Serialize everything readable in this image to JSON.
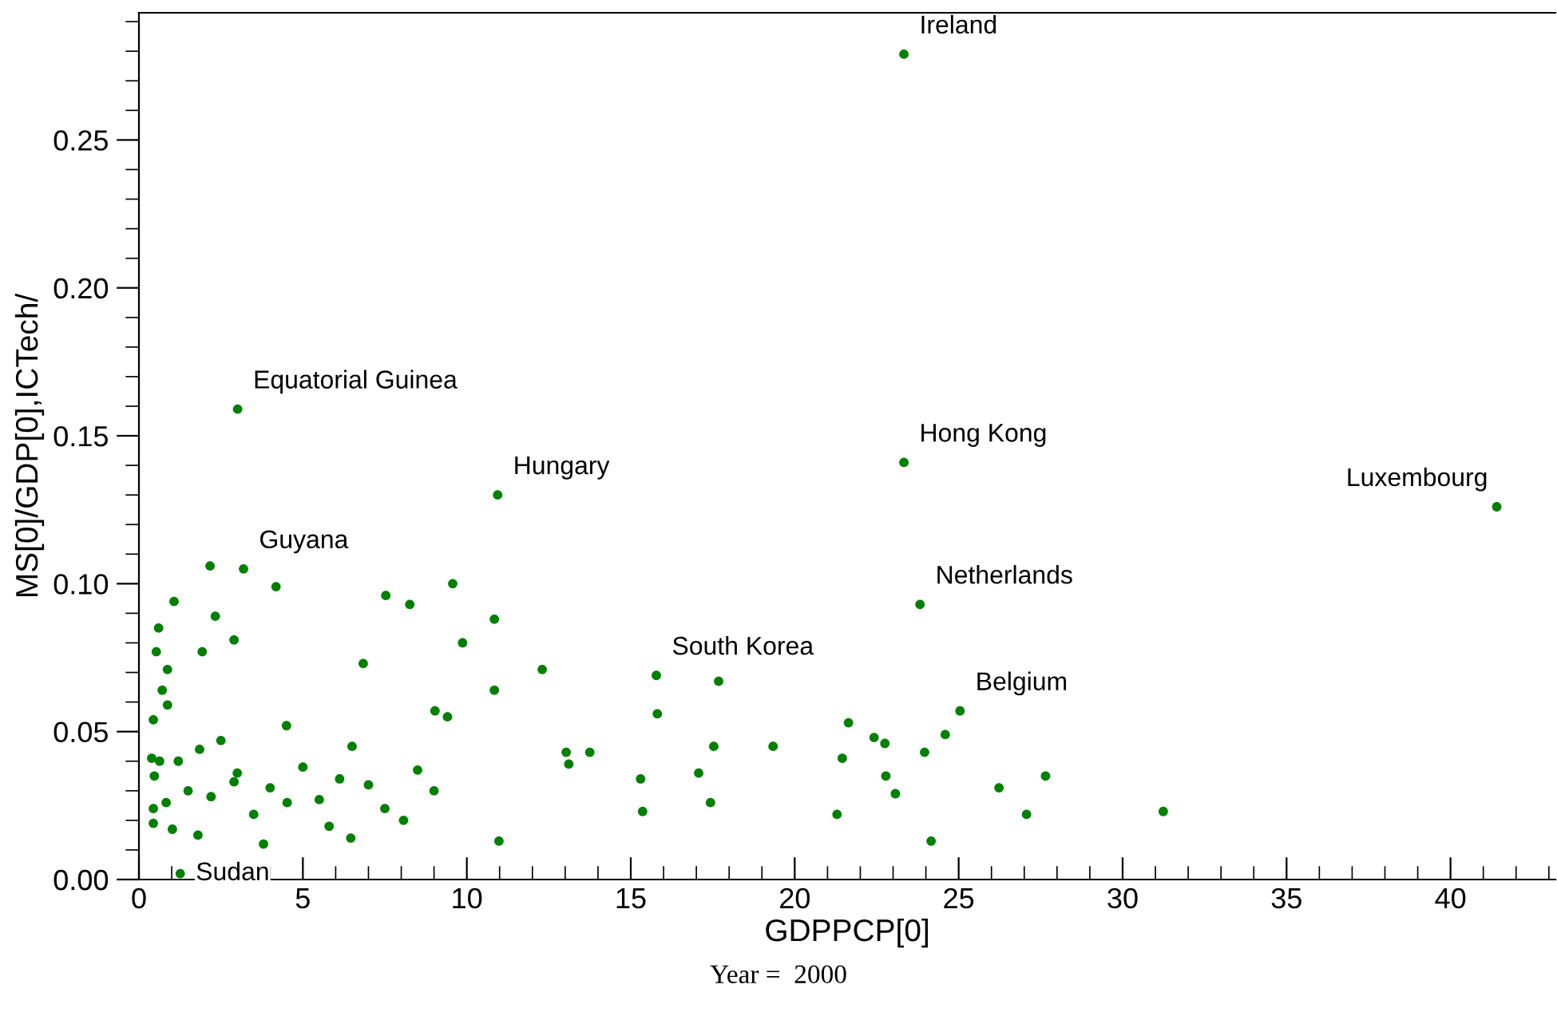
{
  "chart_data": {
    "type": "scatter",
    "xlabel": "GDPPCP[0]",
    "ylabel": "MS[0]/GDP[0],ICTech/",
    "xlim": [
      0,
      43.2
    ],
    "ylim": [
      0,
      0.293
    ],
    "xticks": [
      0,
      5,
      10,
      15,
      20,
      25,
      30,
      35,
      40
    ],
    "yticks": [
      {
        "value": 0,
        "label": "0.00"
      },
      {
        "value": 0.05,
        "label": "0.05"
      },
      {
        "value": 0.1,
        "label": "0.10"
      },
      {
        "value": 0.15,
        "label": "0.15"
      },
      {
        "value": 0.2,
        "label": "0.20"
      },
      {
        "value": 0.25,
        "label": "0.25"
      }
    ],
    "grid": false,
    "marker": "circle",
    "series": [
      {
        "color": "#008000",
        "x": [
          23.33,
          3.01,
          10.94,
          23.33,
          41.41,
          23.82,
          2.17,
          3.19,
          4.18,
          1.07,
          7.53,
          9.57,
          8.26,
          2.33,
          0.6,
          2.9,
          9.87,
          10.84,
          0.53,
          1.93,
          6.84,
          0.87,
          12.3,
          0.71,
          10.84,
          0.87,
          9.03,
          9.41,
          0.44,
          13.03,
          13.75,
          13.11,
          15.3,
          0.39,
          0.63,
          0.47,
          1.2,
          0.44,
          0.83,
          15.36,
          8.07,
          10.98,
          1.26,
          0.44,
          1.02,
          4.52,
          6.46,
          2.9,
          6.12,
          15.78,
          17.68,
          15.81,
          21.64,
          17.53,
          19.34,
          22.42,
          22.75,
          21.45,
          17.07,
          22.78,
          23.96,
          26.23,
          27.65,
          17.43,
          21.29,
          23.07,
          24.16,
          27.07,
          25.04,
          24.59,
          31.24,
          1.85,
          1.5,
          2.2,
          3.0,
          3.5,
          4.0,
          5.0,
          5.5,
          6.5,
          7.0,
          7.5,
          8.5,
          9.0,
          2.5,
          4.5,
          1.8,
          3.8,
          5.8
        ],
        "values": [
          0.279,
          0.159,
          0.13,
          0.141,
          0.126,
          0.093,
          0.106,
          0.105,
          0.099,
          0.094,
          0.096,
          0.1,
          0.093,
          0.089,
          0.085,
          0.081,
          0.08,
          0.088,
          0.077,
          0.077,
          0.073,
          0.071,
          0.071,
          0.064,
          0.064,
          0.059,
          0.057,
          0.055,
          0.054,
          0.043,
          0.043,
          0.039,
          0.034,
          0.041,
          0.04,
          0.035,
          0.04,
          0.024,
          0.026,
          0.023,
          0.02,
          0.013,
          0.002,
          0.019,
          0.017,
          0.026,
          0.014,
          0.033,
          0.034,
          0.069,
          0.067,
          0.056,
          0.053,
          0.045,
          0.045,
          0.048,
          0.046,
          0.041,
          0.036,
          0.035,
          0.043,
          0.031,
          0.035,
          0.026,
          0.022,
          0.029,
          0.013,
          0.022,
          0.057,
          0.049,
          0.023,
          0.044,
          0.03,
          0.028,
          0.036,
          0.022,
          0.031,
          0.038,
          0.027,
          0.045,
          0.032,
          0.024,
          0.037,
          0.03,
          0.047,
          0.052,
          0.015,
          0.012,
          0.018
        ]
      }
    ],
    "annotations": [
      {
        "text": "Ireland",
        "x": 23.33,
        "y": 0.279
      },
      {
        "text": "Equatorial Guinea",
        "x": 3.01,
        "y": 0.159
      },
      {
        "text": "Hungary",
        "x": 10.94,
        "y": 0.13
      },
      {
        "text": "Hong Kong",
        "x": 23.33,
        "y": 0.141
      },
      {
        "text": "Luxembourg",
        "x": 41.41,
        "y": 0.126
      },
      {
        "text": "Netherlands",
        "x": 23.82,
        "y": 0.093
      },
      {
        "text": "Guyana",
        "x": 3.19,
        "y": 0.105
      },
      {
        "text": "Belgium",
        "x": 25.04,
        "y": 0.057
      },
      {
        "text": "South Korea",
        "x": 15.78,
        "y": 0.069
      },
      {
        "text": "Sudan",
        "x": 1.26,
        "y": 0.002
      },
      "Year =  2000"
    ]
  }
}
